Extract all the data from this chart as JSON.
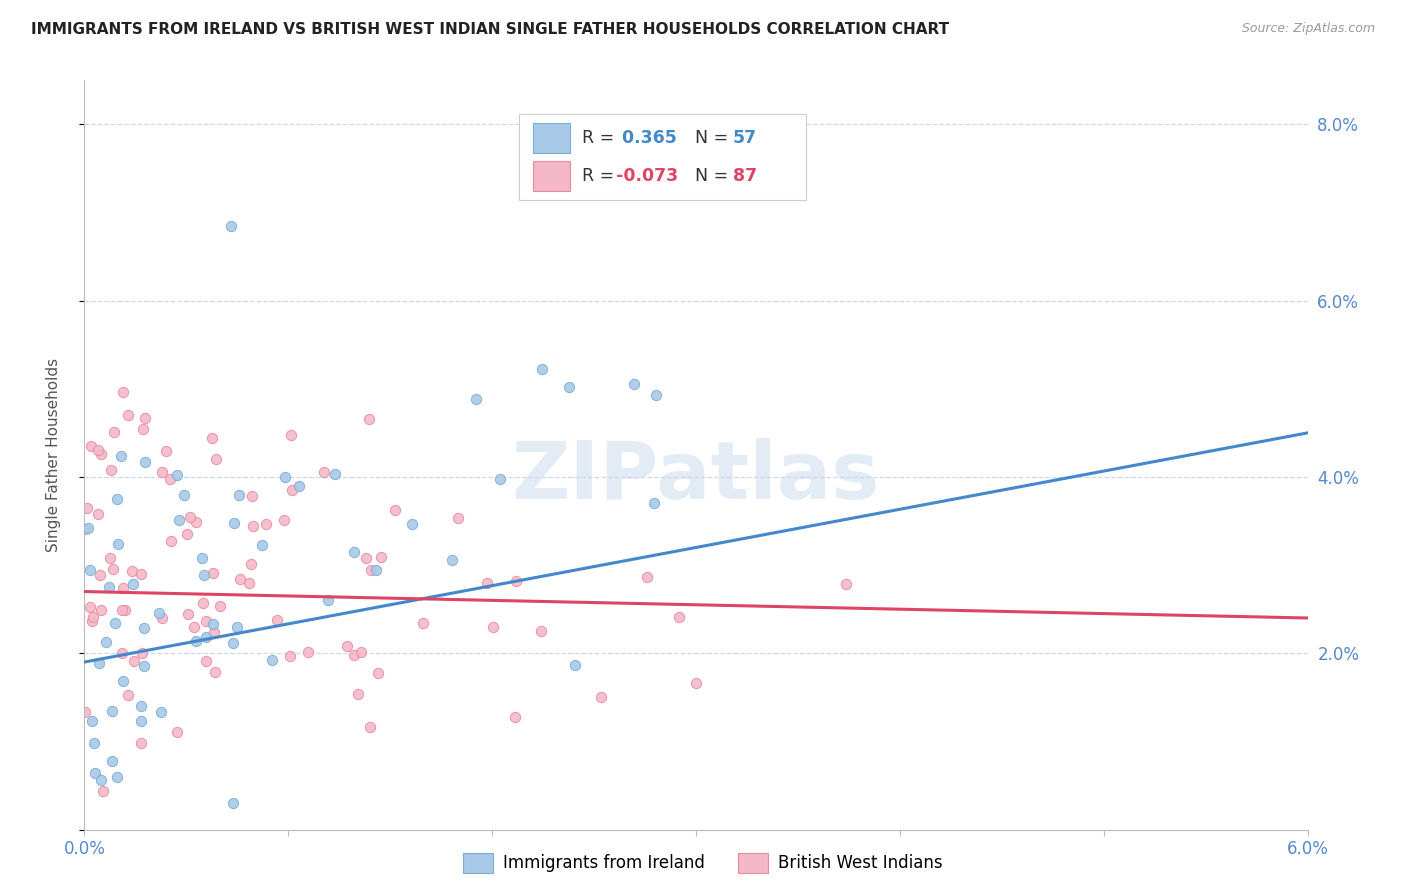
{
  "title": "IMMIGRANTS FROM IRELAND VS BRITISH WEST INDIAN SINGLE FATHER HOUSEHOLDS CORRELATION CHART",
  "source": "Source: ZipAtlas.com",
  "ylabel": "Single Father Households",
  "xlim": [
    0.0,
    0.06
  ],
  "ylim": [
    0.0,
    0.085
  ],
  "ireland_color": "#a8c8e8",
  "ireland_edge": "#7aadd4",
  "bwi_color": "#f4b8c8",
  "bwi_edge": "#e88aa0",
  "ireland_R": 0.365,
  "ireland_N": 57,
  "bwi_R": -0.073,
  "bwi_N": 87,
  "line_ireland_color": "#4488cc",
  "line_bwi_color": "#dd4466",
  "legend_label_ireland": "Immigrants from Ireland",
  "legend_label_bwi": "British West Indians",
  "watermark": "ZIPatlas",
  "background_color": "#ffffff",
  "grid_color": "#ccd8ee",
  "title_color": "#222222",
  "axis_color": "#5588cc",
  "seed": 42
}
